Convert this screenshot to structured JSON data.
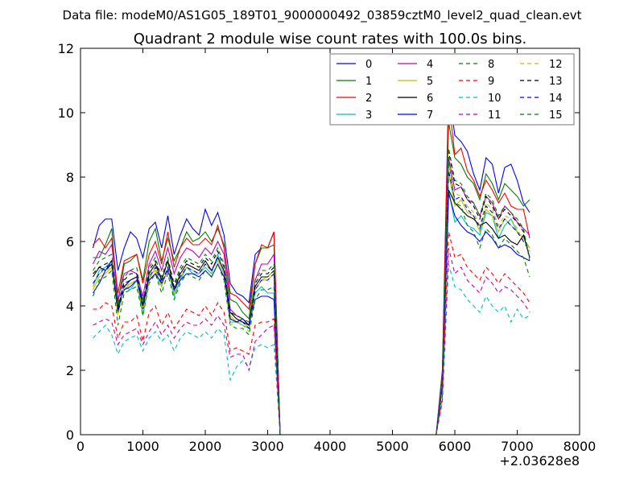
{
  "suptitle": "Data file: modeM0/AS1G05_189T01_9000000492_03859cztM0_level2_quad_clean.evt",
  "chart_data": {
    "type": "line",
    "title": "Quadrant 2 module wise count rates with 100.0s bins.",
    "xlabel": "",
    "ylabel": "",
    "x_offset_label": "+2.03628e8",
    "xlim": [
      0,
      8000
    ],
    "ylim": [
      0,
      12
    ],
    "xticks": [
      0,
      1000,
      2000,
      3000,
      4000,
      5000,
      6000,
      7000,
      8000
    ],
    "yticks": [
      0,
      2,
      4,
      6,
      8,
      10,
      12
    ],
    "grid": false,
    "legend": {
      "position": "top-right",
      "columns": 4
    },
    "x": [
      200,
      300,
      400,
      500,
      600,
      700,
      800,
      900,
      1000,
      1100,
      1200,
      1300,
      1400,
      1500,
      1600,
      1700,
      1800,
      1900,
      2000,
      2100,
      2200,
      2300,
      2400,
      2500,
      2600,
      2700,
      2800,
      2900,
      3000,
      3100,
      3200,
      3300,
      3400,
      3500,
      3600,
      3700,
      3800,
      3900,
      4000,
      4100,
      4200,
      4300,
      4400,
      4500,
      4600,
      4700,
      4800,
      4900,
      5000,
      5100,
      5200,
      5300,
      5400,
      5500,
      5600,
      5700,
      5800,
      5900,
      6000,
      6100,
      6200,
      6300,
      6400,
      6500,
      6600,
      6700,
      6800,
      6900,
      7000,
      7100,
      7200
    ],
    "series": [
      {
        "name": "0",
        "color": "#0000ff",
        "style": "solid",
        "values": [
          5.8,
          6.5,
          6.7,
          6.7,
          5.1,
          5.8,
          6.3,
          6.1,
          5.5,
          6.4,
          6.6,
          5.8,
          6.8,
          5.6,
          6.2,
          6.7,
          6.4,
          6.2,
          7.0,
          6.5,
          6.9,
          6.2,
          4.7,
          4.4,
          4.3,
          4.1,
          5.6,
          5.8,
          5.8,
          6.3,
          0,
          0,
          0,
          0,
          0,
          0,
          0,
          0,
          0,
          0,
          0,
          0,
          0,
          0,
          0,
          0,
          0,
          0,
          0,
          0,
          0,
          0,
          0,
          0,
          0,
          0,
          2.0,
          10.7,
          9.3,
          9.1,
          8.8,
          8.1,
          7.6,
          8.6,
          8.4,
          7.5,
          8.3,
          8.4,
          7.9,
          7.2,
          6.9
        ]
      },
      {
        "name": "1",
        "color": "#008000",
        "style": "solid",
        "values": [
          5.5,
          5.5,
          5.9,
          6.4,
          4.1,
          5.3,
          5.4,
          5.6,
          4.8,
          6.0,
          6.4,
          5.4,
          6.1,
          5.4,
          5.8,
          6.3,
          6.0,
          6.1,
          6.3,
          6.0,
          6.4,
          5.9,
          4.2,
          4.1,
          3.8,
          3.6,
          5.3,
          5.8,
          5.8,
          5.9,
          0,
          0,
          0,
          0,
          0,
          0,
          0,
          0,
          0,
          0,
          0,
          0,
          0,
          0,
          0,
          0,
          0,
          0,
          0,
          0,
          0,
          0,
          0,
          0,
          0,
          0,
          1.9,
          9.7,
          8.6,
          8.4,
          8.0,
          7.8,
          7.3,
          8.1,
          7.8,
          7.3,
          7.8,
          7.6,
          7.4,
          7.1,
          7.3
        ]
      },
      {
        "name": "2",
        "color": "#ff0000",
        "style": "solid",
        "values": [
          5.9,
          6.1,
          5.8,
          6.1,
          4.4,
          5.4,
          5.5,
          5.6,
          4.7,
          5.6,
          6.0,
          5.3,
          6.3,
          5.2,
          5.8,
          6.1,
          5.9,
          5.9,
          6.1,
          5.9,
          6.5,
          5.8,
          4.4,
          4.3,
          4.1,
          3.9,
          5.3,
          5.9,
          5.8,
          6.3,
          0,
          0,
          0,
          0,
          0,
          0,
          0,
          0,
          0,
          0,
          0,
          0,
          0,
          0,
          0,
          0,
          0,
          0,
          0,
          0,
          0,
          0,
          0,
          0,
          0,
          0,
          1.8,
          10.4,
          8.7,
          8.9,
          8.2,
          7.9,
          7.4,
          7.9,
          7.6,
          7.2,
          7.5,
          7.1,
          7.0,
          7.0,
          6.1
        ]
      },
      {
        "name": "3",
        "color": "#00bfbf",
        "style": "solid",
        "values": [
          4.6,
          5.1,
          5.2,
          5.4,
          3.9,
          4.6,
          4.5,
          4.8,
          3.7,
          4.8,
          5.0,
          4.6,
          5.2,
          4.3,
          4.8,
          5.2,
          5.0,
          5.0,
          5.2,
          5.0,
          5.6,
          5.0,
          3.5,
          3.5,
          3.4,
          3.3,
          4.4,
          4.6,
          4.4,
          4.4,
          0,
          0,
          0,
          0,
          0,
          0,
          0,
          0,
          0,
          0,
          0,
          0,
          0,
          0,
          0,
          0,
          0,
          0,
          0,
          0,
          0,
          0,
          0,
          0,
          0,
          0,
          1.6,
          7.6,
          6.6,
          6.8,
          6.5,
          6.4,
          6.2,
          6.9,
          6.8,
          6.1,
          6.5,
          6.7,
          6.3,
          6.1,
          5.8
        ]
      },
      {
        "name": "4",
        "color": "#bf00bf",
        "style": "solid",
        "values": [
          5.3,
          5.7,
          5.6,
          5.9,
          4.2,
          5.0,
          5.1,
          5.0,
          4.3,
          5.3,
          5.7,
          5.1,
          5.8,
          5.0,
          5.5,
          5.8,
          5.7,
          5.5,
          5.8,
          5.6,
          6.0,
          5.6,
          3.9,
          3.7,
          3.6,
          3.4,
          4.8,
          5.3,
          5.3,
          5.6,
          0,
          0,
          0,
          0,
          0,
          0,
          0,
          0,
          0,
          0,
          0,
          0,
          0,
          0,
          0,
          0,
          0,
          0,
          0,
          0,
          0,
          0,
          0,
          0,
          0,
          0,
          1.7,
          8.6,
          7.6,
          7.7,
          7.3,
          7.2,
          6.8,
          7.4,
          7.2,
          6.7,
          7.1,
          6.9,
          6.6,
          6.4,
          6.2
        ]
      },
      {
        "name": "5",
        "color": "#bfbf00",
        "style": "solid",
        "values": [
          4.5,
          4.9,
          5.0,
          5.2,
          3.8,
          4.5,
          4.7,
          4.8,
          3.9,
          4.9,
          5.1,
          4.6,
          5.2,
          4.4,
          4.9,
          5.2,
          5.1,
          5.0,
          5.3,
          5.1,
          5.4,
          5.0,
          3.7,
          3.5,
          3.5,
          3.3,
          4.5,
          4.8,
          4.8,
          5.0,
          0,
          0,
          0,
          0,
          0,
          0,
          0,
          0,
          0,
          0,
          0,
          0,
          0,
          0,
          0,
          0,
          0,
          0,
          0,
          0,
          0,
          0,
          0,
          0,
          0,
          0,
          1.6,
          8.1,
          7.1,
          7.3,
          6.9,
          6.8,
          6.3,
          7.0,
          6.8,
          6.3,
          6.7,
          6.5,
          6.3,
          6.1,
          5.8
        ]
      },
      {
        "name": "6",
        "color": "#000000",
        "style": "solid",
        "values": [
          4.9,
          5.2,
          5.1,
          5.3,
          3.8,
          4.6,
          4.8,
          4.9,
          4.0,
          5.0,
          5.3,
          4.8,
          5.4,
          4.5,
          5.0,
          5.3,
          5.2,
          5.1,
          5.4,
          5.1,
          5.5,
          5.1,
          3.8,
          3.6,
          3.5,
          3.4,
          4.6,
          4.9,
          4.9,
          5.1,
          0,
          0,
          0,
          0,
          0,
          0,
          0,
          0,
          0,
          0,
          0,
          0,
          0,
          0,
          0,
          0,
          0,
          0,
          0,
          0,
          0,
          0,
          0,
          0,
          0,
          0,
          1.5,
          7.6,
          7.2,
          7.0,
          6.8,
          6.7,
          6.5,
          6.6,
          6.4,
          6.1,
          6.2,
          6.0,
          5.9,
          6.2,
          5.5
        ]
      },
      {
        "name": "7",
        "color": "#0000ff",
        "style": "solid",
        "values": [
          4.4,
          4.7,
          5.1,
          5.4,
          4.0,
          4.5,
          4.6,
          4.8,
          4.2,
          4.8,
          5.0,
          4.7,
          5.1,
          4.5,
          4.8,
          5.0,
          5.0,
          4.9,
          5.1,
          4.9,
          5.3,
          4.9,
          3.6,
          3.5,
          3.6,
          3.4,
          4.2,
          4.3,
          4.3,
          4.2,
          0,
          0,
          0,
          0,
          0,
          0,
          0,
          0,
          0,
          0,
          0,
          0,
          0,
          0,
          0,
          0,
          0,
          0,
          0,
          0,
          0,
          0,
          0,
          0,
          0,
          0,
          1.5,
          7.5,
          6.8,
          6.5,
          6.3,
          6.2,
          6.0,
          6.3,
          6.1,
          5.8,
          5.9,
          5.8,
          5.6,
          5.5,
          5.4
        ]
      },
      {
        "name": "8",
        "color": "#008000",
        "style": "dashed",
        "values": [
          4.3,
          4.8,
          4.9,
          5.1,
          3.4,
          4.4,
          4.5,
          4.6,
          3.7,
          4.7,
          5.0,
          4.4,
          5.0,
          4.2,
          4.7,
          5.0,
          4.9,
          4.8,
          5.1,
          4.9,
          5.3,
          4.8,
          3.4,
          3.3,
          3.3,
          3.1,
          4.2,
          4.5,
          4.5,
          4.6,
          0,
          0,
          0,
          0,
          0,
          0,
          0,
          0,
          0,
          0,
          0,
          0,
          0,
          0,
          0,
          0,
          0,
          0,
          0,
          0,
          0,
          0,
          0,
          0,
          0,
          0,
          1.5,
          8.5,
          7.2,
          7.1,
          6.5,
          6.3,
          5.8,
          6.4,
          6.2,
          5.8,
          6.1,
          5.9,
          5.7,
          5.5,
          4.9
        ]
      },
      {
        "name": "9",
        "color": "#ff0000",
        "style": "dashed",
        "values": [
          3.9,
          3.9,
          4.1,
          4.0,
          3.0,
          3.5,
          3.5,
          3.7,
          2.9,
          3.8,
          4.0,
          3.4,
          3.8,
          3.3,
          3.6,
          3.9,
          3.8,
          3.7,
          4.0,
          3.7,
          4.1,
          3.8,
          2.6,
          2.7,
          2.6,
          2.5,
          3.4,
          3.5,
          3.5,
          3.6,
          0,
          0,
          0,
          0,
          0,
          0,
          0,
          0,
          0,
          0,
          0,
          0,
          0,
          0,
          0,
          0,
          0,
          0,
          0,
          0,
          0,
          0,
          0,
          0,
          0,
          0,
          1.2,
          6.3,
          5.5,
          5.6,
          5.2,
          5.0,
          4.8,
          5.2,
          5.0,
          4.7,
          5.0,
          4.8,
          4.6,
          4.4,
          4.1
        ]
      },
      {
        "name": "10",
        "color": "#00bfbf",
        "style": "dashed",
        "values": [
          3.0,
          3.2,
          3.4,
          3.1,
          2.5,
          2.9,
          3.0,
          3.1,
          2.6,
          3.0,
          3.2,
          2.9,
          3.1,
          2.6,
          3.0,
          3.2,
          3.1,
          3.0,
          3.2,
          3.0,
          3.3,
          3.1,
          1.7,
          2.1,
          2.3,
          2.1,
          2.7,
          2.8,
          2.7,
          2.8,
          0,
          0,
          0,
          0,
          0,
          0,
          0,
          0,
          0,
          0,
          0,
          0,
          0,
          0,
          0,
          0,
          0,
          0,
          0,
          0,
          0,
          0,
          0,
          0,
          0,
          0,
          1.0,
          5.3,
          4.6,
          4.5,
          4.2,
          4.0,
          3.8,
          4.3,
          4.0,
          3.8,
          4.0,
          3.5,
          3.9,
          3.6,
          3.7
        ]
      },
      {
        "name": "11",
        "color": "#bf00bf",
        "style": "dashed",
        "values": [
          3.4,
          3.5,
          3.6,
          3.5,
          2.8,
          3.1,
          3.2,
          3.3,
          2.8,
          3.2,
          3.5,
          3.1,
          3.4,
          3.0,
          3.3,
          3.5,
          3.4,
          3.4,
          3.6,
          3.4,
          3.7,
          3.4,
          2.4,
          2.5,
          2.5,
          2.0,
          2.9,
          3.1,
          3.3,
          3.4,
          0,
          0,
          0,
          0,
          0,
          0,
          0,
          0,
          0,
          0,
          0,
          0,
          0,
          0,
          0,
          0,
          0,
          0,
          0,
          0,
          0,
          0,
          0,
          0,
          0,
          0,
          1.1,
          5.8,
          5.0,
          5.2,
          4.8,
          4.6,
          4.4,
          4.9,
          4.7,
          4.4,
          4.6,
          4.5,
          4.3,
          4.1,
          3.8
        ]
      },
      {
        "name": "12",
        "color": "#bfbf00",
        "style": "dashed",
        "values": [
          4.6,
          5.0,
          5.1,
          5.2,
          3.7,
          4.6,
          4.7,
          4.8,
          3.8,
          4.8,
          5.2,
          4.6,
          5.2,
          4.4,
          4.9,
          5.2,
          5.1,
          5.0,
          5.3,
          5.1,
          5.5,
          5.0,
          3.4,
          3.5,
          3.4,
          3.2,
          4.5,
          4.8,
          4.9,
          5.1,
          0,
          0,
          0,
          0,
          0,
          0,
          0,
          0,
          0,
          0,
          0,
          0,
          0,
          0,
          0,
          0,
          0,
          0,
          0,
          0,
          0,
          0,
          0,
          0,
          0,
          0,
          1.6,
          8.4,
          7.5,
          7.4,
          7.1,
          6.9,
          6.5,
          7.2,
          7.0,
          6.5,
          6.8,
          6.7,
          6.4,
          6.0,
          5.8
        ]
      },
      {
        "name": "13",
        "color": "#000000",
        "style": "dashed",
        "values": [
          5.0,
          5.2,
          5.3,
          5.4,
          3.9,
          4.8,
          5.0,
          5.0,
          4.0,
          5.1,
          5.4,
          4.8,
          5.4,
          4.6,
          5.1,
          5.4,
          5.3,
          5.2,
          5.5,
          5.3,
          5.7,
          5.2,
          3.8,
          3.7,
          3.6,
          3.4,
          4.7,
          5.0,
          5.0,
          5.2,
          0,
          0,
          0,
          0,
          0,
          0,
          0,
          0,
          0,
          0,
          0,
          0,
          0,
          0,
          0,
          0,
          0,
          0,
          0,
          0,
          0,
          0,
          0,
          0,
          0,
          0,
          1.7,
          8.8,
          7.8,
          7.7,
          7.3,
          7.1,
          6.7,
          7.4,
          7.1,
          6.7,
          7.0,
          6.8,
          6.6,
          6.3,
          5.5
        ]
      },
      {
        "name": "14",
        "color": "#0000ff",
        "style": "dashed",
        "values": [
          4.7,
          5.0,
          5.2,
          5.3,
          3.9,
          4.7,
          4.8,
          4.9,
          3.9,
          4.9,
          5.2,
          4.7,
          5.2,
          4.5,
          4.9,
          5.2,
          5.1,
          5.0,
          5.3,
          5.1,
          5.5,
          5.1,
          3.6,
          3.5,
          3.5,
          3.3,
          4.5,
          4.8,
          4.8,
          5.0,
          0,
          0,
          0,
          0,
          0,
          0,
          0,
          0,
          0,
          0,
          0,
          0,
          0,
          0,
          0,
          0,
          0,
          0,
          0,
          0,
          0,
          0,
          0,
          0,
          0,
          0,
          1.6,
          8.2,
          7.3,
          7.4,
          7.0,
          6.8,
          6.4,
          7.1,
          6.9,
          6.4,
          6.7,
          6.5,
          6.3,
          6.0,
          5.7
        ]
      },
      {
        "name": "15",
        "color": "#008000",
        "style": "dashed",
        "values": [
          5.1,
          5.4,
          5.5,
          5.6,
          4.0,
          4.9,
          5.1,
          5.2,
          4.1,
          5.2,
          5.5,
          4.9,
          5.5,
          4.7,
          5.2,
          5.5,
          5.4,
          5.3,
          5.6,
          5.4,
          5.8,
          5.3,
          3.8,
          3.7,
          3.6,
          3.5,
          4.8,
          5.1,
          5.1,
          5.3,
          0,
          0,
          0,
          0,
          0,
          0,
          0,
          0,
          0,
          0,
          0,
          0,
          0,
          0,
          0,
          0,
          0,
          0,
          0,
          0,
          0,
          0,
          0,
          0,
          0,
          0,
          1.7,
          8.9,
          7.9,
          7.8,
          7.4,
          7.2,
          6.8,
          7.5,
          7.3,
          6.8,
          7.1,
          6.9,
          6.7,
          6.4,
          5.4
        ]
      }
    ]
  }
}
